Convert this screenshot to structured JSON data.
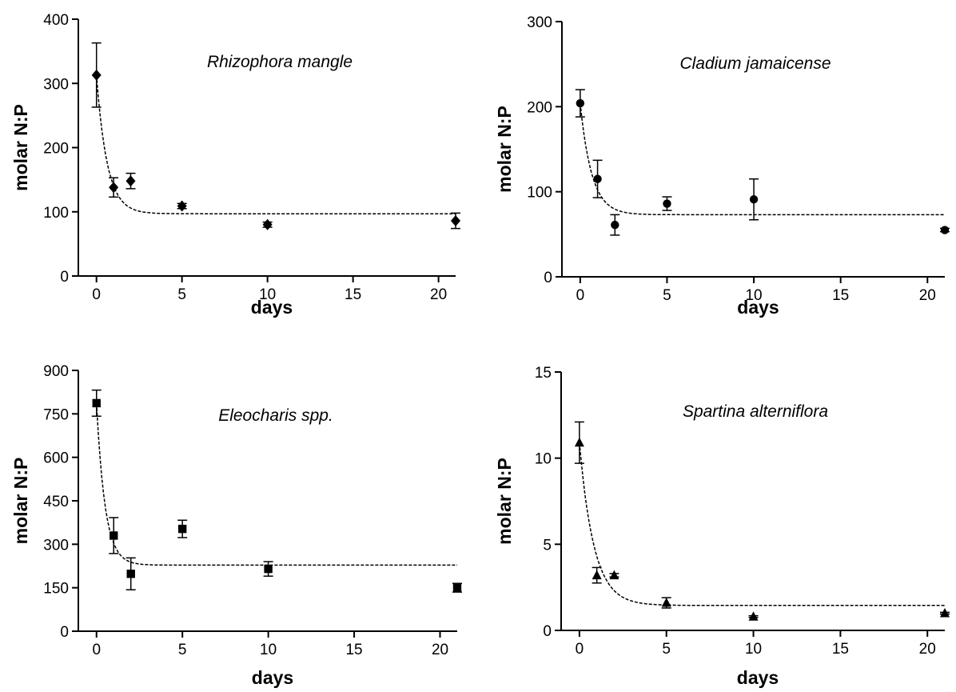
{
  "chart_data": [
    {
      "type": "scatter",
      "title": "Rhizophora mangle",
      "xlabel": "days",
      "ylabel": "molar N:P",
      "xlim": [
        -0.5,
        21
      ],
      "ylim": [
        0,
        400
      ],
      "xticks": [
        0,
        5,
        10,
        15,
        20
      ],
      "yticks": [
        0,
        100,
        200,
        300,
        400
      ],
      "marker": "diamond",
      "series": [
        {
          "x": [
            0,
            1,
            2,
            5,
            10,
            21
          ],
          "y": [
            313,
            138,
            148,
            109,
            80,
            86
          ],
          "error": [
            50,
            15,
            12,
            4,
            4,
            12
          ]
        }
      ],
      "fit": {
        "type": "exponential-decay",
        "y0": 313,
        "plateau": 97,
        "k": 1.6
      }
    },
    {
      "type": "scatter",
      "title": "Cladium jamaicense",
      "xlabel": "days",
      "ylabel": "molar N:P",
      "xlim": [
        -0.5,
        21
      ],
      "ylim": [
        0,
        300
      ],
      "xticks": [
        0,
        5,
        10,
        15,
        20
      ],
      "yticks": [
        0,
        100,
        200,
        300
      ],
      "marker": "circle",
      "series": [
        {
          "x": [
            0,
            1,
            2,
            5,
            10,
            21
          ],
          "y": [
            204,
            115,
            61,
            86,
            91,
            55
          ],
          "error": [
            16,
            22,
            12,
            8,
            24,
            2
          ]
        }
      ],
      "fit": {
        "type": "exponential-decay",
        "y0": 204,
        "plateau": 73,
        "k": 1.5
      }
    },
    {
      "type": "scatter",
      "title": "Eleocharis spp.",
      "xlabel": "days",
      "ylabel": "molar N:P",
      "xlim": [
        -0.5,
        21
      ],
      "ylim": [
        0,
        900
      ],
      "xticks": [
        0,
        5,
        10,
        15,
        20
      ],
      "yticks": [
        0,
        150,
        300,
        450,
        600,
        750,
        900
      ],
      "marker": "square",
      "series": [
        {
          "x": [
            0,
            1,
            2,
            5,
            10,
            21
          ],
          "y": [
            787,
            330,
            198,
            353,
            215,
            150
          ],
          "error": [
            45,
            62,
            55,
            30,
            25,
            15
          ]
        }
      ],
      "fit": {
        "type": "exponential-decay",
        "y0": 787,
        "plateau": 228,
        "k": 2.0
      }
    },
    {
      "type": "scatter",
      "title": "Spartina alterniflora",
      "xlabel": "days",
      "ylabel": "molar N:P",
      "xlim": [
        -0.5,
        21
      ],
      "ylim": [
        0,
        15
      ],
      "xticks": [
        0,
        5,
        10,
        15,
        20
      ],
      "yticks": [
        0,
        5,
        10,
        15
      ],
      "marker": "triangle",
      "series": [
        {
          "x": [
            0,
            1,
            2,
            5,
            10,
            21
          ],
          "y": [
            10.9,
            3.2,
            3.2,
            1.6,
            0.8,
            1.0
          ],
          "error": [
            1.2,
            0.45,
            0.1,
            0.3,
            0.05,
            0.05
          ]
        }
      ],
      "fit": {
        "type": "exponential-decay",
        "y0": 10.9,
        "plateau": 1.45,
        "k": 1.2
      }
    }
  ]
}
